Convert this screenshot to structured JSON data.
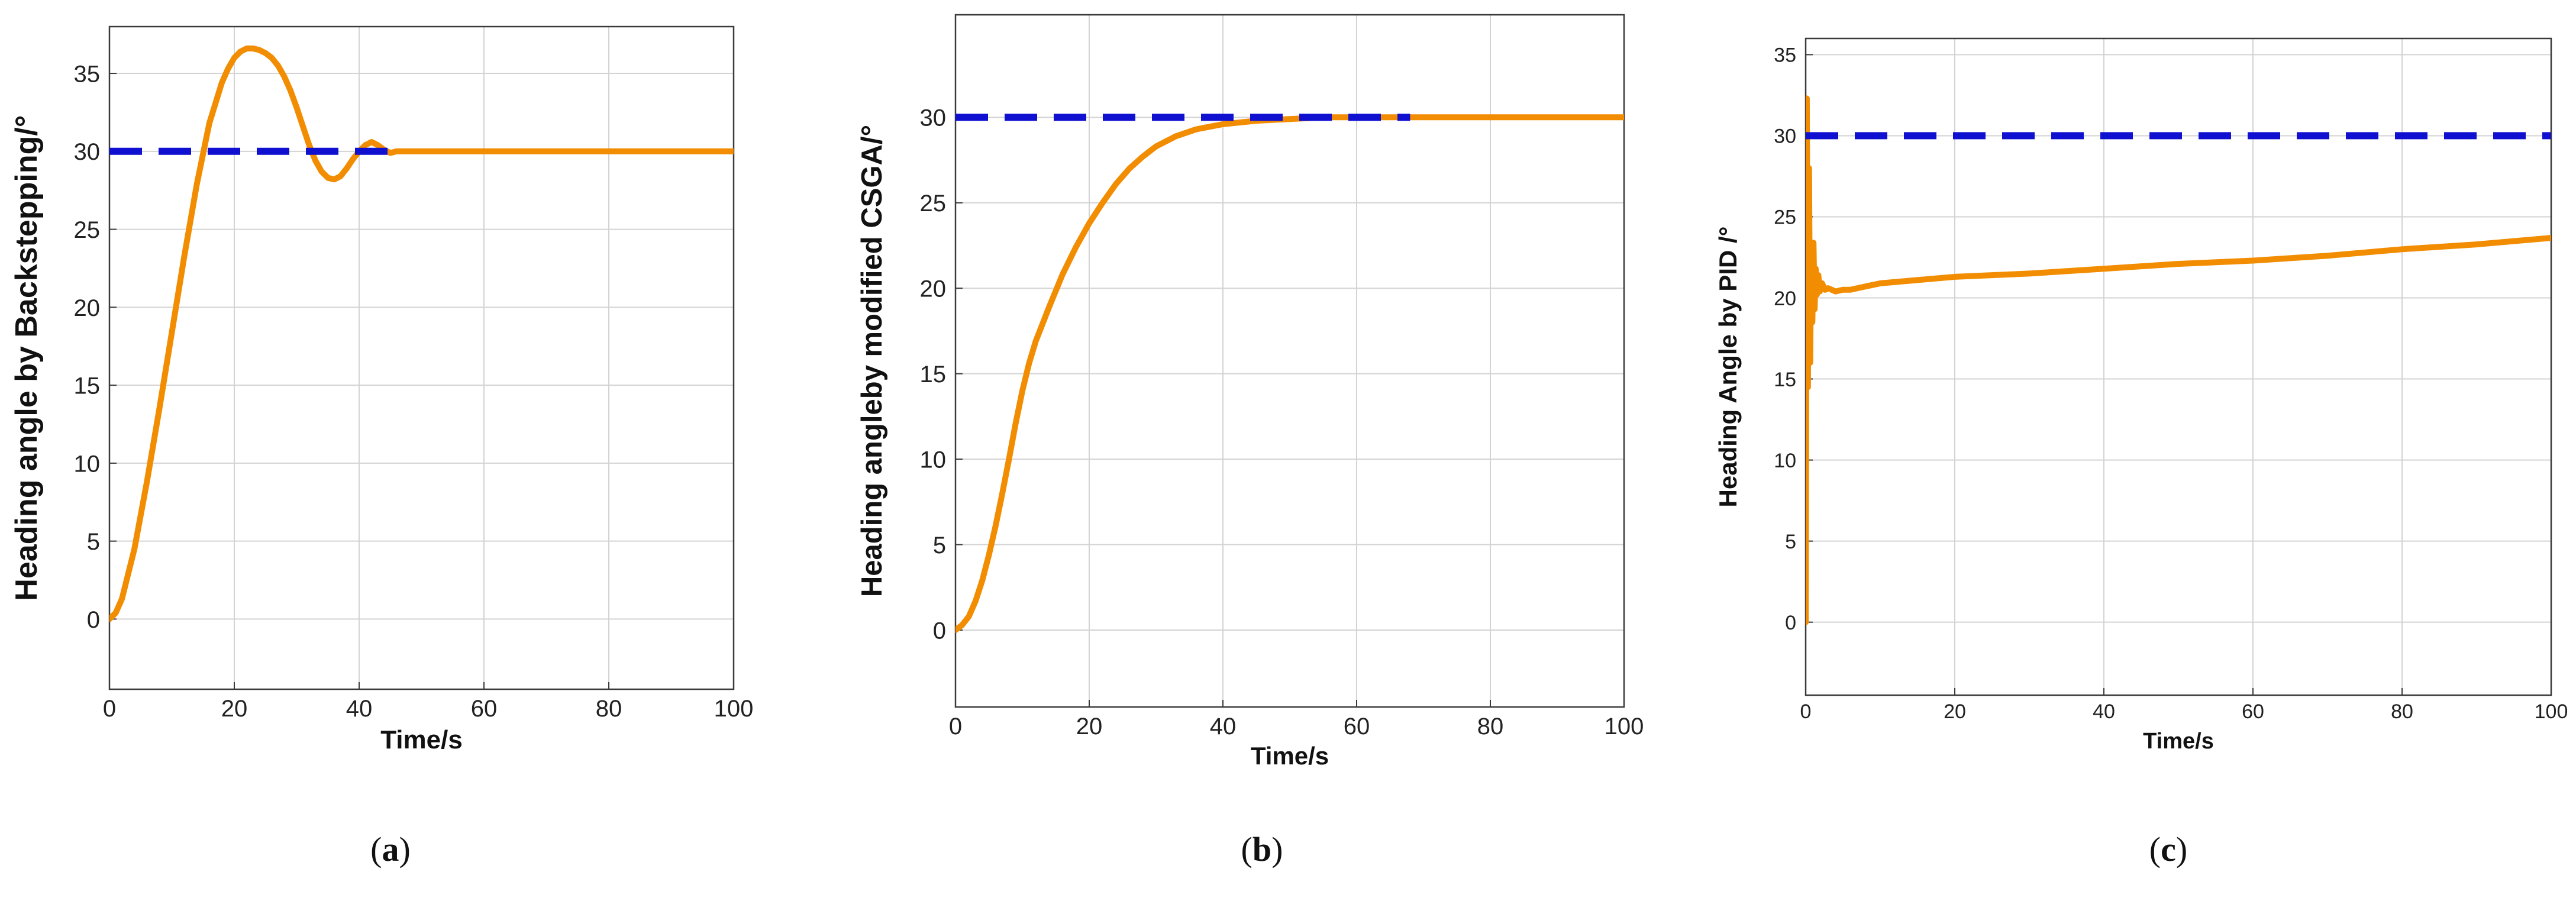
{
  "colors": {
    "response": "#F28C00",
    "setpoint": "#1010D0",
    "grid": "#D3D3D3",
    "axis": "#3A3A3A"
  },
  "chart_data": [
    {
      "type": "line",
      "caption": "a",
      "xlabel": "Time/s",
      "ylabel": "Heading angle by Backstepping/°",
      "xlim": [
        0,
        100
      ],
      "ylim": [
        -4.5,
        38
      ],
      "xticks": [
        0,
        20,
        40,
        60,
        80,
        100
      ],
      "yticks": [
        0,
        5,
        10,
        15,
        20,
        25,
        30,
        35
      ],
      "grid": true,
      "series": [
        {
          "role": "response",
          "style": "solid",
          "x": [
            0,
            1,
            2,
            4,
            6,
            8,
            10,
            12,
            14,
            16,
            18,
            19,
            20,
            21,
            22,
            23,
            24,
            25,
            26,
            27,
            28,
            29,
            30,
            31,
            32,
            33,
            34,
            35,
            36,
            37,
            38,
            39,
            40,
            41,
            42,
            43,
            44,
            45,
            46,
            48,
            50,
            60,
            70,
            80,
            90,
            100
          ],
          "y": [
            0,
            0.4,
            1.3,
            4.5,
            8.8,
            13.5,
            18.4,
            23.3,
            27.9,
            31.8,
            34.4,
            35.3,
            36,
            36.4,
            36.6,
            36.6,
            36.5,
            36.3,
            36,
            35.5,
            34.8,
            33.9,
            32.8,
            31.6,
            30.4,
            29.4,
            28.7,
            28.3,
            28.2,
            28.4,
            28.9,
            29.5,
            30,
            30.4,
            30.6,
            30.4,
            30.1,
            29.9,
            30,
            30,
            30,
            30,
            30,
            30,
            30,
            30
          ]
        },
        {
          "role": "setpoint",
          "style": "dashed",
          "x": [
            0,
            45
          ],
          "y": [
            30,
            30
          ]
        }
      ]
    },
    {
      "type": "line",
      "caption": "b",
      "xlabel": "Time/s",
      "ylabel": "Heading angleby modified CSGA/°",
      "xlim": [
        0,
        100
      ],
      "ylim": [
        -4.5,
        36
      ],
      "xticks": [
        0,
        20,
        40,
        60,
        80,
        100
      ],
      "yticks": [
        0,
        5,
        10,
        15,
        20,
        25,
        30
      ],
      "grid": true,
      "series": [
        {
          "role": "response",
          "style": "solid",
          "x": [
            0,
            1,
            2,
            3,
            4,
            5,
            6,
            7,
            8,
            9,
            10,
            11,
            12,
            14,
            16,
            18,
            20,
            22,
            24,
            26,
            28,
            30,
            33,
            36,
            40,
            45,
            50,
            55,
            60,
            65,
            70,
            80,
            90,
            100
          ],
          "y": [
            0,
            0.3,
            0.8,
            1.7,
            2.9,
            4.4,
            6.1,
            8,
            10,
            12.1,
            14,
            15.6,
            16.9,
            18.9,
            20.8,
            22.4,
            23.8,
            25,
            26.1,
            27,
            27.7,
            28.3,
            28.9,
            29.3,
            29.6,
            29.8,
            29.9,
            30,
            30,
            30,
            30,
            30,
            30,
            30
          ]
        },
        {
          "role": "setpoint",
          "style": "dashed",
          "x": [
            0,
            68
          ],
          "y": [
            30,
            30
          ]
        }
      ]
    },
    {
      "type": "line",
      "caption": "c",
      "xlabel": "Time/s",
      "ylabel": "Heading Angle by PID /°",
      "xlim": [
        0,
        100
      ],
      "ylim": [
        -4.5,
        36
      ],
      "xticks": [
        0,
        20,
        40,
        60,
        80,
        100
      ],
      "yticks": [
        0,
        5,
        10,
        15,
        20,
        25,
        30,
        35
      ],
      "grid": true,
      "series": [
        {
          "role": "response",
          "style": "solid",
          "x": [
            0,
            0.15,
            0.3,
            0.45,
            0.6,
            0.75,
            0.9,
            1.05,
            1.2,
            1.35,
            1.5,
            1.7,
            1.9,
            2.2,
            2.6,
            3,
            4,
            5,
            6,
            8,
            10,
            15,
            20,
            30,
            40,
            50,
            60,
            70,
            80,
            90,
            100
          ],
          "y": [
            0,
            32.3,
            14.5,
            28,
            16,
            23.3,
            18.5,
            23.4,
            19.3,
            21.8,
            20.2,
            21.4,
            20.4,
            20.9,
            20.5,
            20.6,
            20.4,
            20.5,
            20.5,
            20.7,
            20.9,
            21.1,
            21.3,
            21.5,
            21.8,
            22.1,
            22.3,
            22.6,
            23,
            23.3,
            23.7
          ]
        },
        {
          "role": "setpoint",
          "style": "dashed",
          "x": [
            0,
            100
          ],
          "y": [
            30,
            30
          ]
        }
      ]
    }
  ]
}
